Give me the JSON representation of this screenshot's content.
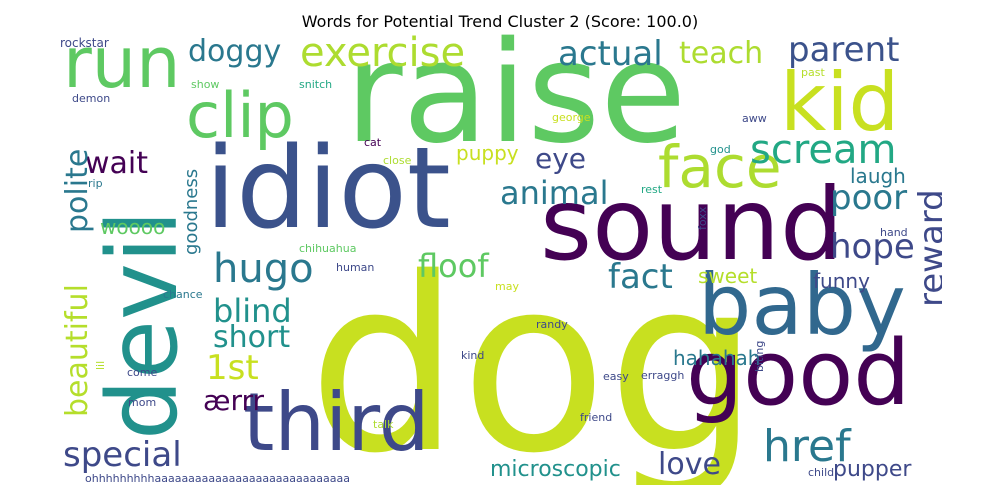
{
  "title": "Words for Potential Trend Cluster 2 (Score: 100.0)",
  "words": [
    {
      "text": "dog",
      "color": "#c8e020"
    },
    {
      "text": "raise",
      "color": "#5ec962"
    },
    {
      "text": "idiot",
      "color": "#3b528b"
    },
    {
      "text": "sound",
      "color": "#440154"
    },
    {
      "text": "good",
      "color": "#440154"
    },
    {
      "text": "third",
      "color": "#3e4989"
    },
    {
      "text": "devil",
      "color": "#21918c"
    },
    {
      "text": "baby",
      "color": "#31688e"
    },
    {
      "text": "kid",
      "color": "#c8e020"
    },
    {
      "text": "face",
      "color": "#addc30"
    },
    {
      "text": "run",
      "color": "#5ec962"
    },
    {
      "text": "clip",
      "color": "#5ec962"
    },
    {
      "text": "exercise",
      "color": "#addc30"
    },
    {
      "text": "scream",
      "color": "#22a884"
    },
    {
      "text": "doggy",
      "color": "#2a788e"
    },
    {
      "text": "actual",
      "color": "#2a788e"
    },
    {
      "text": "teach",
      "color": "#addc30"
    },
    {
      "text": "parent",
      "color": "#3b528b"
    },
    {
      "text": "hugo",
      "color": "#2a788e"
    },
    {
      "text": "href",
      "color": "#2a788e"
    },
    {
      "text": "reward",
      "color": "#3e4989"
    },
    {
      "text": "poor",
      "color": "#2a788e"
    },
    {
      "text": "hope",
      "color": "#3e4989"
    },
    {
      "text": "fact",
      "color": "#2a788e"
    },
    {
      "text": "floof",
      "color": "#5ec962"
    },
    {
      "text": "animal",
      "color": "#2a788e"
    },
    {
      "text": "eye",
      "color": "#3e4989"
    },
    {
      "text": "wait",
      "color": "#440154"
    },
    {
      "text": "beautiful",
      "color": "#b5de2b"
    },
    {
      "text": "polite",
      "color": "#2a788e"
    },
    {
      "text": "special",
      "color": "#3e4989"
    },
    {
      "text": "blind",
      "color": "#21918c"
    },
    {
      "text": "short",
      "color": "#21918c"
    },
    {
      "text": "1st",
      "color": "#c8e020"
    },
    {
      "text": "ærrr",
      "color": "#440154"
    },
    {
      "text": "love",
      "color": "#3e4989"
    },
    {
      "text": "microscopic",
      "color": "#21918c"
    },
    {
      "text": "pupper",
      "color": "#3e4989"
    },
    {
      "text": "hahahah",
      "color": "#2a788e"
    },
    {
      "text": "funny",
      "color": "#3e4989"
    },
    {
      "text": "sweet",
      "color": "#b5de2b"
    },
    {
      "text": "laugh",
      "color": "#2a788e"
    },
    {
      "text": "puppy",
      "color": "#c8e020"
    },
    {
      "text": "woooo",
      "color": "#5ec962"
    },
    {
      "text": "goodness",
      "color": "#2a788e"
    },
    {
      "text": "rockstar",
      "color": "#3e4989"
    },
    {
      "text": "show",
      "color": "#5ec962"
    },
    {
      "text": "snitch",
      "color": "#22a884"
    },
    {
      "text": "past",
      "color": "#b5de2b"
    },
    {
      "text": "demon",
      "color": "#3e4989"
    },
    {
      "text": "aww",
      "color": "#3e4989"
    },
    {
      "text": "george",
      "color": "#c8e020"
    },
    {
      "text": "cat",
      "color": "#440154"
    },
    {
      "text": "close",
      "color": "#addc30"
    },
    {
      "text": "god",
      "color": "#21918c"
    },
    {
      "text": "rest",
      "color": "#22a884"
    },
    {
      "text": "rip",
      "color": "#2a788e"
    },
    {
      "text": "foxx",
      "color": "#3e4989"
    },
    {
      "text": "hand",
      "color": "#3e4989"
    },
    {
      "text": "chihuahua",
      "color": "#5ec962"
    },
    {
      "text": "human",
      "color": "#3e4989"
    },
    {
      "text": "chance",
      "color": "#2a788e"
    },
    {
      "text": "may",
      "color": "#c8e020"
    },
    {
      "text": "randy",
      "color": "#3e4989"
    },
    {
      "text": "lil",
      "color": "#b5de2b"
    },
    {
      "text": "biting",
      "color": "#3e4989"
    },
    {
      "text": "kind",
      "color": "#3e4989"
    },
    {
      "text": "come",
      "color": "#3e4989"
    },
    {
      "text": "easy",
      "color": "#3e4989"
    },
    {
      "text": "erraggh",
      "color": "#3e4989"
    },
    {
      "text": "mom",
      "color": "#3e4989"
    },
    {
      "text": "friend",
      "color": "#3e4989"
    },
    {
      "text": "talk",
      "color": "#addc30"
    },
    {
      "text": "child",
      "color": "#3e4989"
    },
    {
      "text": "ohhhhhhhhhaaaaaaaaaaaaaaaaaaaaaaaaaaaaa",
      "color": "#3e4989"
    }
  ]
}
